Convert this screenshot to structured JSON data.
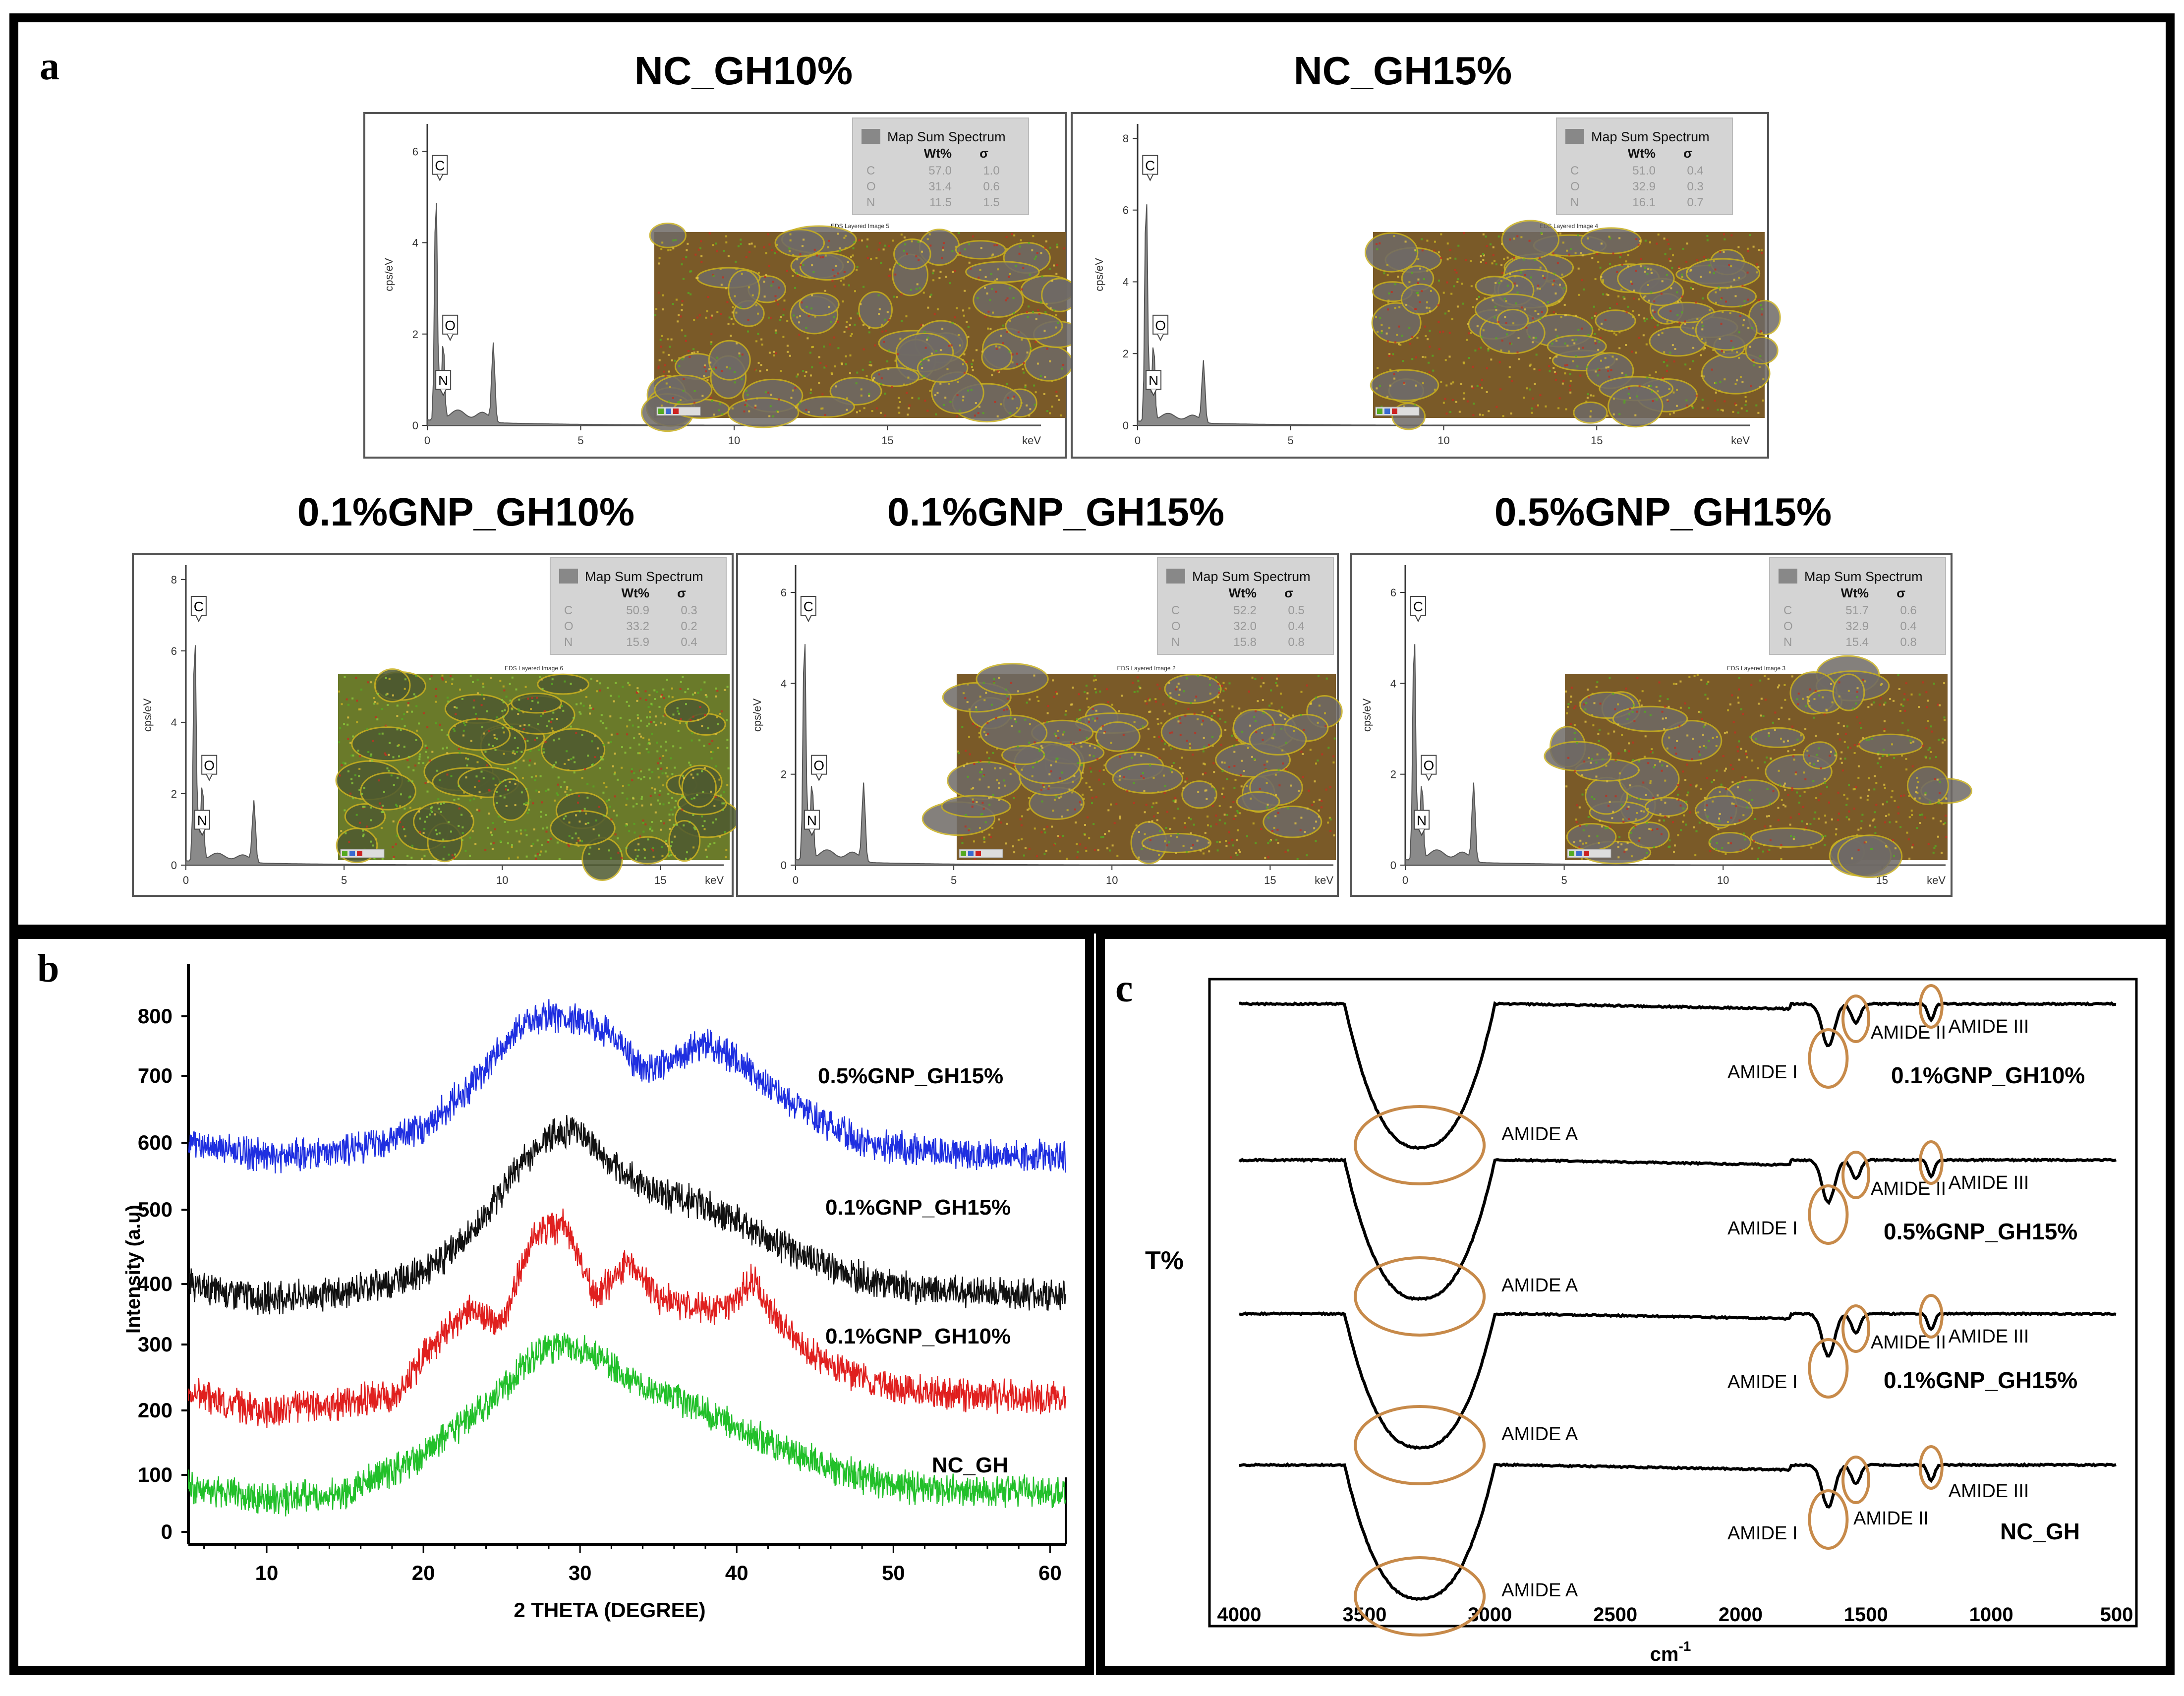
{
  "panel_labels": {
    "a": "a",
    "b": "b",
    "c": "c"
  },
  "eds": {
    "xlabel": "keV",
    "ylabel": "cps/eV",
    "legend_title": "Map Sum Spectrum",
    "col_wt": "Wt%",
    "col_sigma": "σ",
    "map_title_prefix": "EDS Layered Image",
    "elements": {
      "c": "C",
      "o": "O",
      "n": "N"
    },
    "colors": {
      "spectrum": "#8a8a8a",
      "carbon": "#c8b020",
      "oxygen": "#cc2222",
      "nitrogen": "#55aa22",
      "grey": "#777777"
    },
    "samples": [
      {
        "title": "NC_GH10%",
        "map_title": "EDS Layered Image 5",
        "yticks": [
          "0",
          "2",
          "4",
          "6"
        ],
        "ymax": 6.6,
        "xticks": [
          "0",
          "5",
          "10",
          "15"
        ],
        "table": [
          {
            "el": "C",
            "wt": "57.0",
            "sigma": "1.0"
          },
          {
            "el": "O",
            "wt": "31.4",
            "sigma": "0.6"
          },
          {
            "el": "N",
            "wt": "11.5",
            "sigma": "1.5"
          }
        ]
      },
      {
        "title": "NC_GH15%",
        "map_title": "EDS Layered Image 4",
        "yticks": [
          "0",
          "2",
          "4",
          "6",
          "8"
        ],
        "ymax": 8.4,
        "xticks": [
          "0",
          "5",
          "10",
          "15"
        ],
        "table": [
          {
            "el": "C",
            "wt": "51.0",
            "sigma": "0.4"
          },
          {
            "el": "O",
            "wt": "32.9",
            "sigma": "0.3"
          },
          {
            "el": "N",
            "wt": "16.1",
            "sigma": "0.7"
          }
        ]
      },
      {
        "title": "0.1%GNP_GH10%",
        "map_title": "EDS Layered Image 6",
        "yticks": [
          "0",
          "2",
          "4",
          "6",
          "8"
        ],
        "ymax": 8.4,
        "xticks": [
          "0",
          "5",
          "10",
          "15"
        ],
        "table": [
          {
            "el": "C",
            "wt": "50.9",
            "sigma": "0.3"
          },
          {
            "el": "O",
            "wt": "33.2",
            "sigma": "0.2"
          },
          {
            "el": "N",
            "wt": "15.9",
            "sigma": "0.4"
          }
        ]
      },
      {
        "title": "0.1%GNP_GH15%",
        "map_title": "EDS Layered Image 2",
        "yticks": [
          "0",
          "2",
          "4",
          "6"
        ],
        "ymax": 6.6,
        "xticks": [
          "0",
          "5",
          "10",
          "15"
        ],
        "table": [
          {
            "el": "C",
            "wt": "52.2",
            "sigma": "0.5"
          },
          {
            "el": "O",
            "wt": "32.0",
            "sigma": "0.4"
          },
          {
            "el": "N",
            "wt": "15.8",
            "sigma": "0.8"
          }
        ]
      },
      {
        "title": "0.5%GNP_GH15%",
        "map_title": "EDS Layered Image 3",
        "yticks": [
          "0",
          "2",
          "4",
          "6"
        ],
        "ymax": 6.6,
        "xticks": [
          "0",
          "5",
          "10",
          "15"
        ],
        "table": [
          {
            "el": "C",
            "wt": "51.7",
            "sigma": "0.6"
          },
          {
            "el": "O",
            "wt": "32.9",
            "sigma": "0.4"
          },
          {
            "el": "N",
            "wt": "15.4",
            "sigma": "0.8"
          }
        ]
      }
    ]
  },
  "chart_data": [
    {
      "type": "line",
      "panel": "b",
      "title": "",
      "xlabel": "2 THETA (DEGREE)",
      "ylabel": "Intensity (a.u)",
      "xlim": [
        5,
        61
      ],
      "ylim": [
        0,
        850
      ],
      "xticks": [
        "10",
        "20",
        "30",
        "40",
        "50",
        "60"
      ],
      "yticks": [
        "0",
        "100",
        "200",
        "300",
        "400",
        "500",
        "600",
        "700",
        "800"
      ],
      "series": [
        {
          "name": "0.5%GNP_GH15%",
          "color": "#1f2fe0",
          "x": [
            5,
            10,
            15,
            20,
            23,
            26,
            28,
            30,
            32,
            34,
            36,
            38,
            40,
            42,
            45,
            48,
            52,
            56,
            61
          ],
          "y": [
            600,
            575,
            585,
            620,
            690,
            780,
            800,
            795,
            770,
            715,
            730,
            760,
            730,
            690,
            640,
            600,
            585,
            580,
            575
          ]
        },
        {
          "name": "0.1%GNP_GH15%",
          "color": "#111111",
          "x": [
            5,
            10,
            15,
            20,
            23,
            26,
            28,
            30,
            32,
            35,
            38,
            41,
            44,
            47,
            50,
            55,
            61
          ],
          "y": [
            370,
            350,
            360,
            390,
            450,
            560,
            610,
            620,
            560,
            520,
            500,
            460,
            420,
            390,
            370,
            360,
            355
          ]
        },
        {
          "name": "0.1%GNP_GH10%",
          "color": "#e0201f",
          "x": [
            5,
            10,
            15,
            18,
            21,
            23,
            25,
            27,
            29,
            31,
            33,
            35,
            37,
            39,
            41,
            43,
            46,
            50,
            55,
            61
          ],
          "y": [
            200,
            170,
            185,
            195,
            285,
            330,
            310,
            450,
            470,
            350,
            410,
            350,
            340,
            330,
            380,
            300,
            240,
            205,
            195,
            190
          ]
        },
        {
          "name": "NC_GH",
          "color": "#22c02a",
          "x": [
            5,
            10,
            15,
            20,
            24,
            27,
            29,
            31,
            34,
            38,
            42,
            46,
            50,
            55,
            61
          ],
          "y": [
            50,
            30,
            40,
            100,
            180,
            260,
            280,
            260,
            210,
            170,
            120,
            80,
            50,
            45,
            40
          ]
        }
      ]
    },
    {
      "type": "line",
      "panel": "c",
      "title": "",
      "xlabel": "cm",
      "xlabel_sup": "-1",
      "ylabel": "T%",
      "xlim": [
        4000,
        500
      ],
      "x_reversed": true,
      "xticks": [
        "4000",
        "3500",
        "3000",
        "2500",
        "2000",
        "1500",
        "1000",
        "500"
      ],
      "series": [
        {
          "name": "0.1%GNP_GH10%",
          "color": "#000000",
          "offset": 0
        },
        {
          "name": "0.5%GNP_GH15%",
          "color": "#000000",
          "offset": 1
        },
        {
          "name": "0.1%GNP_GH15%",
          "color": "#000000",
          "offset": 2
        },
        {
          "name": "NC_GH",
          "color": "#000000",
          "offset": 3
        }
      ],
      "annotations": {
        "amide_a": "AMIDE A",
        "amide_i": "AMIDE I",
        "amide_ii": "AMIDE II",
        "amide_iii": "AMIDE III",
        "ring_color": "#c78a4a"
      }
    }
  ]
}
